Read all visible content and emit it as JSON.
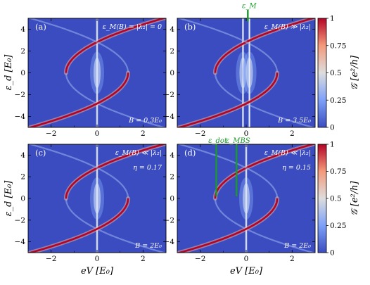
{
  "chart_data": {
    "type": "heatmap",
    "x": {
      "label": "eV [E₀]",
      "range": [
        -3,
        3
      ],
      "ticks": [
        "−2",
        "0",
        "2"
      ]
    },
    "y": {
      "label": "ε_d [E₀]",
      "range": [
        -5,
        5
      ],
      "ticks": [
        "−4",
        "−2",
        "0",
        "2",
        "4"
      ]
    },
    "colorbar": {
      "label": "𝒢 [e²/h]",
      "range": [
        0,
        1
      ],
      "ticks": [
        "0",
        "0.25",
        "0.5",
        "0.75",
        "1"
      ]
    },
    "panels": [
      {
        "id": "a",
        "label": "(a)",
        "annotation_top": "ε_M(B) = |λ₂| = 0",
        "annotation_bottom": "B = 0.3E₀",
        "mbs_split": 0,
        "extra_lines": []
      },
      {
        "id": "b",
        "label": "(b)",
        "annotation_top": "ε_M(B) ≫ |λ₂|",
        "annotation_bottom": "B = 3.5E₀",
        "mbs_split": 0.14,
        "extra_lines": [
          {
            "label": "ε_M",
            "x": 0.07,
            "y0": 4.7,
            "y1": 5.8
          }
        ]
      },
      {
        "id": "c",
        "label": "(c)",
        "annotation_top": "ε_M(B) ≪ |λ₂|",
        "annotation_mid": "η = 0.17",
        "annotation_bottom": "B = 2E₀",
        "mbs_split": 0,
        "extra_lines": []
      },
      {
        "id": "d",
        "label": "(d)",
        "annotation_top": "ε_M(B) ≪ |λ₂|",
        "annotation_mid": "η = 0.15",
        "annotation_bottom": "B = 2E₀",
        "mbs_split": 0,
        "extra_lines": [
          {
            "label": "ε_dot",
            "x": -1.3,
            "y0": 0.2,
            "y1": 5.0
          },
          {
            "label": "ε_MBS",
            "x": -0.42,
            "y0": 0.2,
            "y1": 5.0
          }
        ]
      }
    ]
  },
  "colors": {
    "background": "#3b4cc0",
    "peak": "#b40426",
    "mid": "#dddddd",
    "annotation": "#1a9a2a"
  }
}
